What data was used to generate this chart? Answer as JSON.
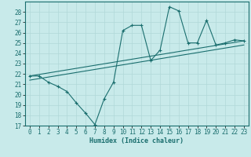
{
  "title": "",
  "xlabel": "Humidex (Indice chaleur)",
  "bg_color": "#c8eaea",
  "grid_color": "#b0d8d8",
  "line_color": "#1a6e6e",
  "xlim": [
    -0.5,
    23.5
  ],
  "ylim": [
    17,
    29
  ],
  "yticks": [
    17,
    18,
    19,
    20,
    21,
    22,
    23,
    24,
    25,
    26,
    27,
    28
  ],
  "xticks": [
    0,
    1,
    2,
    3,
    4,
    5,
    6,
    7,
    8,
    9,
    10,
    11,
    12,
    13,
    14,
    15,
    16,
    17,
    18,
    19,
    20,
    21,
    22,
    23
  ],
  "line1_x": [
    0,
    1,
    2,
    3,
    4,
    5,
    6,
    7,
    8,
    9,
    10,
    11,
    12,
    13,
    14,
    15,
    16,
    17,
    18,
    19,
    20,
    21,
    22,
    23
  ],
  "line1_y": [
    21.8,
    21.8,
    21.2,
    20.8,
    20.3,
    19.2,
    18.2,
    17.1,
    19.6,
    21.2,
    26.2,
    26.7,
    26.7,
    23.3,
    24.3,
    28.5,
    28.1,
    25.0,
    25.0,
    27.2,
    24.8,
    25.0,
    25.3,
    25.2
  ],
  "line2_x": [
    0,
    23
  ],
  "line2_y": [
    21.8,
    25.2
  ],
  "line3_x": [
    0,
    23
  ],
  "line3_y": [
    21.4,
    24.8
  ],
  "tick_fontsize": 5.5,
  "xlabel_fontsize": 6.0
}
